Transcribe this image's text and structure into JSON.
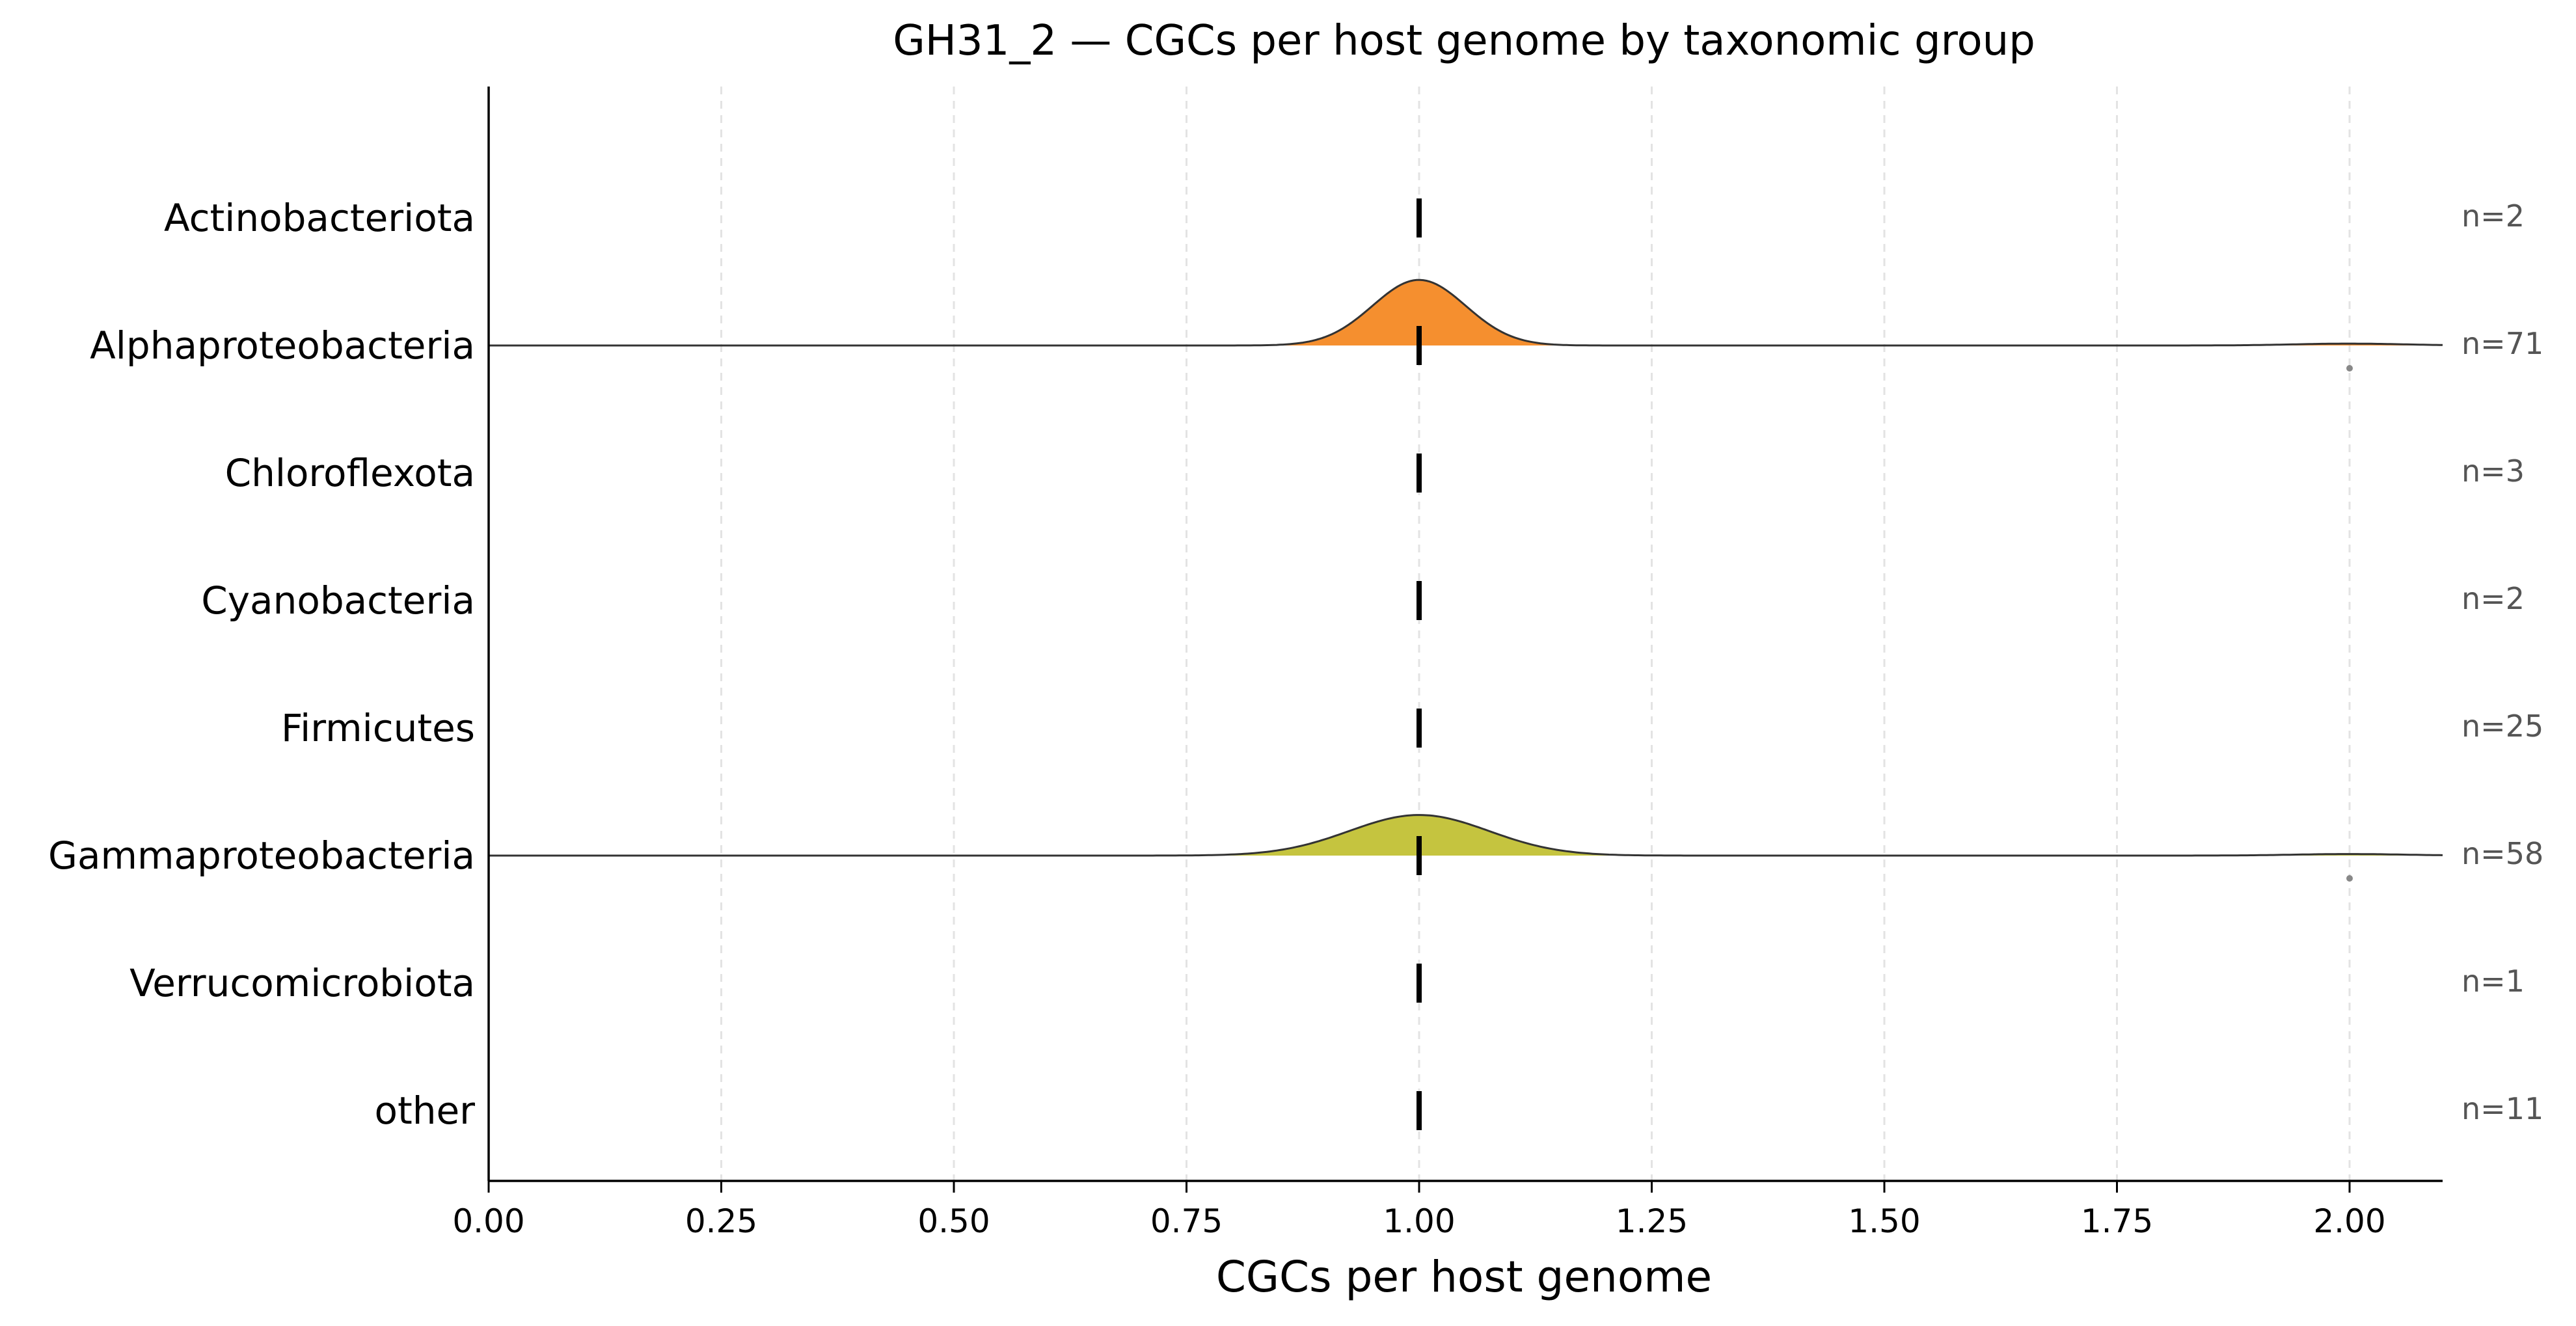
{
  "chart_data": {
    "type": "ridgeline",
    "title": "GH31_2 — CGCs per host genome by taxonomic group",
    "xlabel": "CGCs per host genome",
    "ylabel": "",
    "xlim": [
      0.0,
      2.1
    ],
    "x_ticks": [
      "0.00",
      "0.25",
      "0.50",
      "0.75",
      "1.00",
      "1.25",
      "1.50",
      "1.75",
      "2.00"
    ],
    "x_tick_values": [
      0.0,
      0.25,
      0.5,
      0.75,
      1.0,
      1.25,
      1.5,
      1.75,
      2.0
    ],
    "grid": "vertical dashed",
    "colors": {
      "Alphaproteobacteria": "#f58f2f",
      "Gammaproteobacteria": "#c5c43f",
      "median_marker": "#000000",
      "outline": "#333333",
      "outlier": "#888888",
      "count_text": "#555555"
    },
    "groups": [
      {
        "name": "Actinobacteriota",
        "count_label": "n=2",
        "median": 1.0,
        "has_density": false
      },
      {
        "name": "Alphaproteobacteria",
        "count_label": "n=71",
        "median": 1.0,
        "has_density": true,
        "density_center": 1.0,
        "density_sd": 0.05,
        "peak_height": 0.42,
        "tail_at": 2.0,
        "tail_height": 0.012,
        "outliers": [
          2.0
        ]
      },
      {
        "name": "Chloroflexota",
        "count_label": "n=3",
        "median": 1.0,
        "has_density": false
      },
      {
        "name": "Cyanobacteria",
        "count_label": "n=2",
        "median": 1.0,
        "has_density": false
      },
      {
        "name": "Firmicutes",
        "count_label": "n=25",
        "median": 1.0,
        "has_density": false
      },
      {
        "name": "Gammaproteobacteria",
        "count_label": "n=58",
        "median": 1.0,
        "has_density": true,
        "density_center": 1.0,
        "density_sd": 0.075,
        "peak_height": 0.26,
        "tail_at": 2.0,
        "tail_height": 0.01,
        "outliers": [
          2.0
        ]
      },
      {
        "name": "Verrucomicrobiota",
        "count_label": "n=1",
        "median": 1.0,
        "has_density": false
      },
      {
        "name": "other",
        "count_label": "n=11",
        "median": 1.0,
        "has_density": false
      }
    ]
  }
}
